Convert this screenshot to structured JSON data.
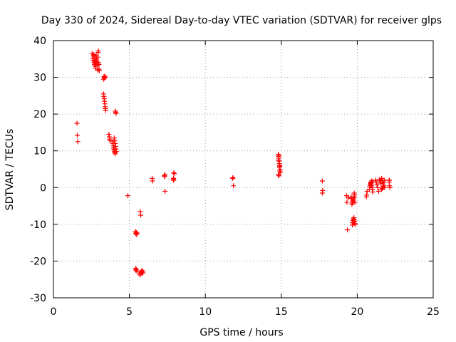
{
  "chart_data": {
    "type": "scatter",
    "title": "Day 330 of 2024, Sidereal Day-to-day VTEC variation (SDTVAR) for receiver glps",
    "xlabel": "GPS time / hours",
    "ylabel": "SDTVAR / TECUs",
    "xlim": [
      0,
      25
    ],
    "ylim": [
      -30,
      40
    ],
    "xticks": [
      0,
      5,
      10,
      15,
      20,
      25
    ],
    "yticks": [
      -30,
      -20,
      -10,
      0,
      10,
      20,
      30,
      40
    ],
    "xtick_labels": [
      "0",
      "5",
      "10",
      "15",
      "20",
      "25"
    ],
    "ytick_labels": [
      "-30",
      "-20",
      "-10",
      "0",
      "10",
      "20",
      "30",
      "40"
    ],
    "grid": true,
    "marker": "+",
    "color": "#ff0000",
    "series": [
      {
        "name": "SDTVAR",
        "x": [
          1.55,
          1.57,
          1.6,
          2.55,
          2.58,
          2.6,
          2.62,
          2.65,
          2.68,
          2.7,
          2.72,
          2.74,
          2.75,
          2.76,
          2.78,
          2.8,
          2.82,
          2.84,
          2.86,
          2.88,
          2.9,
          2.92,
          2.94,
          2.96,
          2.98,
          3.0,
          3.0,
          3.02,
          3.3,
          3.33,
          3.36,
          3.38,
          3.4,
          3.3,
          3.32,
          3.34,
          3.36,
          3.38,
          3.4,
          3.42,
          3.44,
          3.65,
          3.68,
          3.7,
          3.72,
          3.9,
          3.92,
          3.94,
          3.96,
          3.98,
          4.0,
          4.02,
          4.04,
          4.06,
          4.08,
          4.1,
          4.12,
          4.0,
          4.03,
          4.06,
          4.1,
          4.12,
          4.15,
          4.9,
          5.4,
          5.42,
          5.45,
          5.48,
          5.5,
          5.4,
          5.43,
          5.46,
          5.5,
          5.7,
          5.72,
          5.75,
          5.78,
          5.8,
          5.83,
          5.86,
          5.9,
          5.72,
          5.75,
          6.5,
          6.52,
          7.3,
          7.32,
          7.35,
          7.35,
          7.9,
          7.92,
          7.95,
          7.9,
          7.93,
          11.8,
          11.82,
          11.85,
          14.8,
          14.82,
          14.84,
          14.86,
          14.88,
          14.9,
          14.92,
          14.94,
          14.8,
          14.85,
          14.9,
          14.82,
          14.88,
          14.84,
          14.9,
          17.7,
          17.72,
          17.7,
          19.3,
          19.32,
          19.35,
          19.4,
          19.6,
          19.62,
          19.65,
          19.68,
          19.7,
          19.72,
          19.75,
          19.78,
          19.8,
          19.82,
          19.85,
          19.87,
          19.7,
          19.72,
          19.75,
          19.78,
          19.8,
          19.82,
          19.85,
          19.68,
          19.7,
          19.75,
          19.8,
          20.6,
          20.62,
          20.65,
          20.8,
          20.82,
          20.85,
          20.88,
          20.9,
          20.92,
          20.95,
          20.98,
          21.0,
          21.02,
          20.85,
          20.9,
          20.95,
          21.0,
          21.2,
          21.25,
          21.3,
          21.35,
          21.4,
          21.45,
          21.5,
          21.55,
          21.6,
          21.65,
          21.7,
          21.75,
          21.8,
          21.6,
          21.65,
          21.7,
          21.75,
          21.8,
          22.1,
          22.12,
          22.15,
          22.1,
          22.12
        ],
        "y": [
          17.5,
          14.2,
          12.5,
          36.5,
          35.2,
          34.5,
          35.8,
          36.2,
          34.0,
          33.5,
          34.8,
          35.5,
          33.0,
          32.5,
          34.2,
          33.8,
          36.0,
          35.0,
          34.5,
          33.2,
          32.0,
          35.5,
          36.8,
          37.2,
          34.0,
          33.5,
          32.2,
          31.8,
          29.5,
          30.2,
          29.8,
          30.0,
          30.3,
          25.5,
          24.8,
          24.2,
          23.5,
          22.8,
          22.0,
          21.5,
          21.0,
          14.5,
          13.8,
          13.2,
          12.8,
          12.5,
          12.0,
          11.5,
          11.0,
          10.5,
          10.2,
          9.8,
          9.5,
          9.2,
          20.8,
          20.5,
          20.2,
          13.5,
          12.8,
          12.0,
          11.2,
          10.5,
          9.8,
          -2.2,
          -12.0,
          -12.5,
          -12.2,
          -12.8,
          -12.4,
          -22.0,
          -22.5,
          -22.3,
          -22.8,
          -23.8,
          -23.5,
          -23.2,
          -23.0,
          -22.8,
          -22.5,
          -23.3,
          -23.0,
          -6.5,
          -7.5,
          2.5,
          1.8,
          3.2,
          3.0,
          3.5,
          -1.0,
          2.5,
          4.0,
          3.8,
          2.0,
          2.2,
          2.5,
          2.7,
          0.5,
          9.0,
          8.5,
          8.0,
          7.2,
          6.5,
          5.8,
          5.0,
          4.2,
          3.5,
          3.2,
          6.0,
          7.5,
          5.5,
          8.8,
          4.5,
          1.8,
          -0.8,
          -1.5,
          -2.2,
          -4.0,
          -11.5,
          -2.8,
          -2.5,
          -3.0,
          -4.5,
          -4.2,
          -3.8,
          -3.5,
          -3.2,
          -2.8,
          -2.5,
          -2.0,
          -4.0,
          -10.0,
          -9.5,
          -9.0,
          -8.5,
          -8.2,
          -8.8,
          -9.2,
          -9.8,
          -10.2,
          -9.6,
          -8.6,
          -1.5,
          -2.5,
          -2.0,
          -1.0,
          -0.5,
          0.2,
          0.8,
          1.2,
          1.5,
          1.0,
          0.5,
          0.0,
          -0.5,
          -1.2,
          0.6,
          1.3,
          1.8,
          1.5,
          2.0,
          1.5,
          0.8,
          0.0,
          -1.0,
          2.2,
          1.8,
          1.2,
          2.5,
          2.0,
          1.0,
          0.5,
          0.0,
          -0.5,
          -0.2,
          0.3,
          1.5,
          2.0,
          2.0,
          0.5,
          0.0,
          1.5,
          2.0
        ],
        "color": "#ff0000",
        "marker": "+"
      }
    ]
  }
}
